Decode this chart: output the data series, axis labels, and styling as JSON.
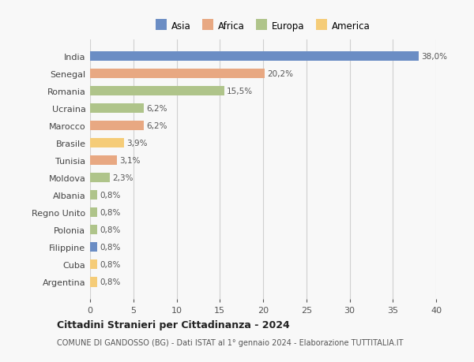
{
  "categories": [
    "India",
    "Senegal",
    "Romania",
    "Ucraina",
    "Marocco",
    "Brasile",
    "Tunisia",
    "Moldova",
    "Albania",
    "Regno Unito",
    "Polonia",
    "Filippine",
    "Cuba",
    "Argentina"
  ],
  "values": [
    38.0,
    20.2,
    15.5,
    6.2,
    6.2,
    3.9,
    3.1,
    2.3,
    0.8,
    0.8,
    0.8,
    0.8,
    0.8,
    0.8
  ],
  "labels": [
    "38,0%",
    "20,2%",
    "15,5%",
    "6,2%",
    "6,2%",
    "3,9%",
    "3,1%",
    "2,3%",
    "0,8%",
    "0,8%",
    "0,8%",
    "0,8%",
    "0,8%",
    "0,8%"
  ],
  "colors": [
    "#6b8dc4",
    "#e8a882",
    "#afc48a",
    "#afc48a",
    "#e8a882",
    "#f5cc78",
    "#e8a882",
    "#afc48a",
    "#afc48a",
    "#afc48a",
    "#afc48a",
    "#6b8dc4",
    "#f5cc78",
    "#f5cc78"
  ],
  "legend_labels": [
    "Asia",
    "Africa",
    "Europa",
    "America"
  ],
  "legend_colors": [
    "#6b8dc4",
    "#e8a882",
    "#afc48a",
    "#f5cc78"
  ],
  "title": "Cittadini Stranieri per Cittadinanza - 2024",
  "subtitle": "COMUNE DI GANDOSSO (BG) - Dati ISTAT al 1° gennaio 2024 - Elaborazione TUTTITALIA.IT",
  "xlim": [
    0,
    40
  ],
  "xticks": [
    0,
    5,
    10,
    15,
    20,
    25,
    30,
    35,
    40
  ],
  "bg_color": "#f8f8f8",
  "grid_color": "#d0d0d0",
  "bar_height": 0.55
}
